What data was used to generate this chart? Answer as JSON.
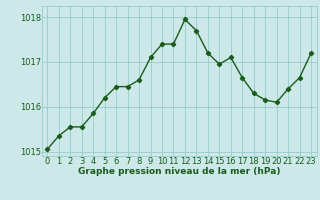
{
  "x": [
    0,
    1,
    2,
    3,
    4,
    5,
    6,
    7,
    8,
    9,
    10,
    11,
    12,
    13,
    14,
    15,
    16,
    17,
    18,
    19,
    20,
    21,
    22,
    23
  ],
  "y": [
    1015.05,
    1015.35,
    1015.55,
    1015.55,
    1015.85,
    1016.2,
    1016.45,
    1016.45,
    1016.6,
    1017.1,
    1017.4,
    1017.4,
    1017.95,
    1017.7,
    1017.2,
    1016.95,
    1017.1,
    1016.65,
    1016.3,
    1016.15,
    1016.1,
    1016.4,
    1016.65,
    1017.2
  ],
  "line_color": "#1a5c1a",
  "marker": "D",
  "marker_size": 2.2,
  "bg_color": "#cce8e8",
  "grid_color": "#99cccc",
  "xlabel": "Graphe pression niveau de la mer (hPa)",
  "ylim": [
    1014.9,
    1018.25
  ],
  "yticks": [
    1015,
    1016,
    1017,
    1018
  ],
  "xlim": [
    -0.5,
    23.5
  ],
  "xticks": [
    0,
    1,
    2,
    3,
    4,
    5,
    6,
    7,
    8,
    9,
    10,
    11,
    12,
    13,
    14,
    15,
    16,
    17,
    18,
    19,
    20,
    21,
    22,
    23
  ],
  "xlabel_fontsize": 6.5,
  "tick_fontsize": 6.0,
  "line_width": 1.0
}
